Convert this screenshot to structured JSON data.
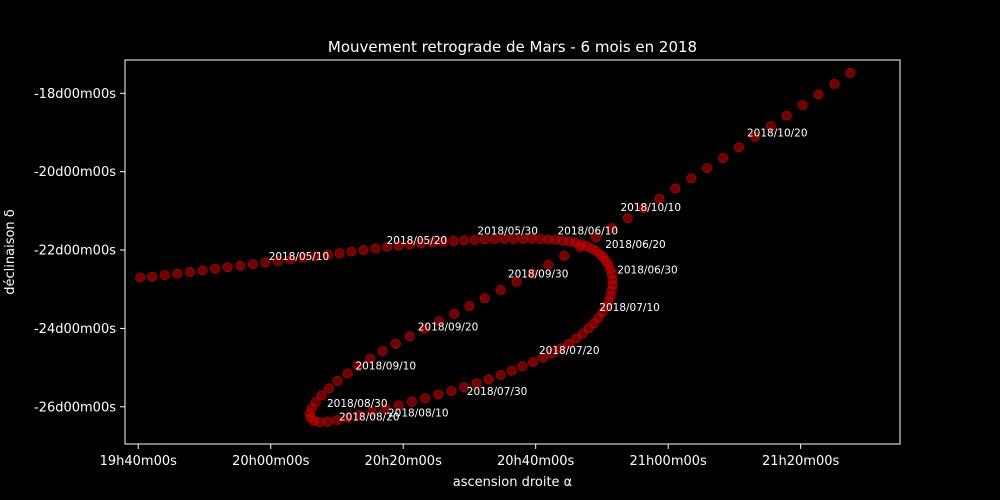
{
  "chart_data": {
    "type": "scatter",
    "title": "Mouvement retrograde de Mars - 6 mois en 2018",
    "xlabel": "ascension droite α",
    "ylabel": "déclinaison δ",
    "xlim_min": [
      1178,
      1295
    ],
    "ylim_deg": [
      -26.95,
      -17.15
    ],
    "x_ticks": [
      {
        "value_min": 1180,
        "label": "19h40m00s"
      },
      {
        "value_min": 1200,
        "label": "20h00m00s"
      },
      {
        "value_min": 1220,
        "label": "20h20m00s"
      },
      {
        "value_min": 1240,
        "label": "20h40m00s"
      },
      {
        "value_min": 1260,
        "label": "21h00m00s"
      },
      {
        "value_min": 1280,
        "label": "21h20m00s"
      }
    ],
    "y_ticks": [
      {
        "value_deg": -18,
        "label": "-18d00m00s"
      },
      {
        "value_deg": -20,
        "label": "-20d00m00s"
      },
      {
        "value_deg": -22,
        "label": "-22d00m00s"
      },
      {
        "value_deg": -24,
        "label": "-24d00m00s"
      },
      {
        "value_deg": -26,
        "label": "-26d00m00s"
      }
    ],
    "marker_color": "#cc0000",
    "annotations": [
      {
        "label": "2018/05/10",
        "ra_min": 1199.7,
        "dec_deg": -22.25
      },
      {
        "label": "2018/05/20",
        "ra_min": 1217.5,
        "dec_deg": -21.85
      },
      {
        "label": "2018/05/30",
        "ra_min": 1231.2,
        "dec_deg": -21.6
      },
      {
        "label": "2018/06/10",
        "ra_min": 1243.3,
        "dec_deg": -21.6
      },
      {
        "label": "2018/06/20",
        "ra_min": 1250.5,
        "dec_deg": -21.95
      },
      {
        "label": "2018/06/30",
        "ra_min": 1252.3,
        "dec_deg": -22.6
      },
      {
        "label": "2018/07/10",
        "ra_min": 1249.6,
        "dec_deg": -23.55
      },
      {
        "label": "2018/07/20",
        "ra_min": 1240.5,
        "dec_deg": -24.65
      },
      {
        "label": "2018/07/30",
        "ra_min": 1229.6,
        "dec_deg": -25.7
      },
      {
        "label": "2018/08/10",
        "ra_min": 1217.7,
        "dec_deg": -26.25
      },
      {
        "label": "2018/08/20",
        "ra_min": 1210.3,
        "dec_deg": -26.35
      },
      {
        "label": "2018/08/30",
        "ra_min": 1208.5,
        "dec_deg": -26.0
      },
      {
        "label": "2018/09/10",
        "ra_min": 1212.8,
        "dec_deg": -25.05
      },
      {
        "label": "2018/09/20",
        "ra_min": 1222.2,
        "dec_deg": -24.05
      },
      {
        "label": "2018/09/30",
        "ra_min": 1235.8,
        "dec_deg": -22.7
      },
      {
        "label": "2018/10/10",
        "ra_min": 1252.8,
        "dec_deg": -21.0
      },
      {
        "label": "2018/10/20",
        "ra_min": 1271.9,
        "dec_deg": -19.1
      }
    ],
    "points": [
      [
        1180.3,
        -22.7
      ],
      [
        1182.1,
        -22.68
      ],
      [
        1184.0,
        -22.64
      ],
      [
        1185.9,
        -22.6
      ],
      [
        1187.8,
        -22.56
      ],
      [
        1189.7,
        -22.52
      ],
      [
        1191.6,
        -22.48
      ],
      [
        1193.5,
        -22.44
      ],
      [
        1195.4,
        -22.4
      ],
      [
        1197.3,
        -22.36
      ],
      [
        1199.2,
        -22.32
      ],
      [
        1201.1,
        -22.28
      ],
      [
        1203.0,
        -22.24
      ],
      [
        1204.9,
        -22.2
      ],
      [
        1206.8,
        -22.16
      ],
      [
        1208.6,
        -22.12
      ],
      [
        1210.4,
        -22.08
      ],
      [
        1212.2,
        -22.04
      ],
      [
        1214.0,
        -22.0
      ],
      [
        1215.8,
        -21.96
      ],
      [
        1217.6,
        -21.92
      ],
      [
        1219.3,
        -21.89
      ],
      [
        1221.0,
        -21.86
      ],
      [
        1222.7,
        -21.83
      ],
      [
        1224.4,
        -21.81
      ],
      [
        1226.0,
        -21.79
      ],
      [
        1227.6,
        -21.77
      ],
      [
        1229.2,
        -21.75
      ],
      [
        1230.8,
        -21.74
      ],
      [
        1232.3,
        -21.73
      ],
      [
        1233.8,
        -21.72
      ],
      [
        1235.3,
        -21.71
      ],
      [
        1236.7,
        -21.71
      ],
      [
        1238.1,
        -21.71
      ],
      [
        1239.4,
        -21.71
      ],
      [
        1240.7,
        -21.72
      ],
      [
        1241.9,
        -21.73
      ],
      [
        1243.0,
        -21.74
      ],
      [
        1244.1,
        -21.76
      ],
      [
        1245.1,
        -21.78
      ],
      [
        1246.0,
        -21.81
      ],
      [
        1246.9,
        -21.85
      ],
      [
        1247.7,
        -21.9
      ],
      [
        1248.4,
        -21.96
      ],
      [
        1249.1,
        -22.02
      ],
      [
        1249.7,
        -22.1
      ],
      [
        1250.2,
        -22.18
      ],
      [
        1250.6,
        -22.28
      ],
      [
        1251.0,
        -22.38
      ],
      [
        1251.3,
        -22.5
      ],
      [
        1251.5,
        -22.62
      ],
      [
        1251.6,
        -22.75
      ],
      [
        1251.6,
        -22.89
      ],
      [
        1251.5,
        -23.03
      ],
      [
        1251.3,
        -23.17
      ],
      [
        1251.0,
        -23.31
      ],
      [
        1250.6,
        -23.45
      ],
      [
        1250.1,
        -23.59
      ],
      [
        1249.5,
        -23.73
      ],
      [
        1248.8,
        -23.87
      ],
      [
        1248.0,
        -24.0
      ],
      [
        1247.1,
        -24.13
      ],
      [
        1246.1,
        -24.26
      ],
      [
        1245.0,
        -24.39
      ],
      [
        1243.8,
        -24.51
      ],
      [
        1242.5,
        -24.63
      ],
      [
        1241.1,
        -24.75
      ],
      [
        1239.6,
        -24.86
      ],
      [
        1238.0,
        -24.97
      ],
      [
        1236.4,
        -25.08
      ],
      [
        1234.7,
        -25.19
      ],
      [
        1232.9,
        -25.3
      ],
      [
        1231.1,
        -25.4
      ],
      [
        1229.2,
        -25.5
      ],
      [
        1227.3,
        -25.6
      ],
      [
        1225.3,
        -25.69
      ],
      [
        1223.3,
        -25.78
      ],
      [
        1221.3,
        -25.87
      ],
      [
        1219.3,
        -25.96
      ],
      [
        1217.3,
        -26.05
      ],
      [
        1215.3,
        -26.13
      ],
      [
        1213.4,
        -26.21
      ],
      [
        1211.6,
        -26.28
      ],
      [
        1210.0,
        -26.34
      ],
      [
        1208.6,
        -26.38
      ],
      [
        1207.4,
        -26.39
      ],
      [
        1206.5,
        -26.36
      ],
      [
        1206.0,
        -26.28
      ],
      [
        1205.9,
        -26.17
      ],
      [
        1206.2,
        -26.03
      ],
      [
        1206.8,
        -25.88
      ],
      [
        1207.7,
        -25.71
      ],
      [
        1208.8,
        -25.53
      ],
      [
        1210.1,
        -25.34
      ],
      [
        1211.6,
        -25.15
      ],
      [
        1213.2,
        -24.96
      ],
      [
        1215.0,
        -24.77
      ],
      [
        1216.9,
        -24.58
      ],
      [
        1218.9,
        -24.39
      ],
      [
        1221.0,
        -24.2
      ],
      [
        1223.2,
        -24.01
      ],
      [
        1225.4,
        -23.82
      ],
      [
        1227.7,
        -23.63
      ],
      [
        1230.0,
        -23.43
      ],
      [
        1232.3,
        -23.23
      ],
      [
        1234.7,
        -23.02
      ],
      [
        1237.1,
        -22.81
      ],
      [
        1239.5,
        -22.6
      ],
      [
        1241.9,
        -22.38
      ],
      [
        1244.3,
        -22.15
      ],
      [
        1246.7,
        -21.92
      ],
      [
        1249.1,
        -21.68
      ],
      [
        1251.5,
        -21.44
      ],
      [
        1253.9,
        -21.19
      ],
      [
        1256.3,
        -20.94
      ],
      [
        1258.7,
        -20.69
      ],
      [
        1261.1,
        -20.43
      ],
      [
        1263.5,
        -20.17
      ],
      [
        1265.9,
        -19.91
      ],
      [
        1268.3,
        -19.65
      ],
      [
        1270.7,
        -19.38
      ],
      [
        1273.1,
        -19.11
      ],
      [
        1275.5,
        -18.84
      ],
      [
        1277.9,
        -18.57
      ],
      [
        1280.3,
        -18.3
      ],
      [
        1282.7,
        -18.03
      ],
      [
        1285.1,
        -17.76
      ],
      [
        1287.5,
        -17.48
      ]
    ]
  }
}
